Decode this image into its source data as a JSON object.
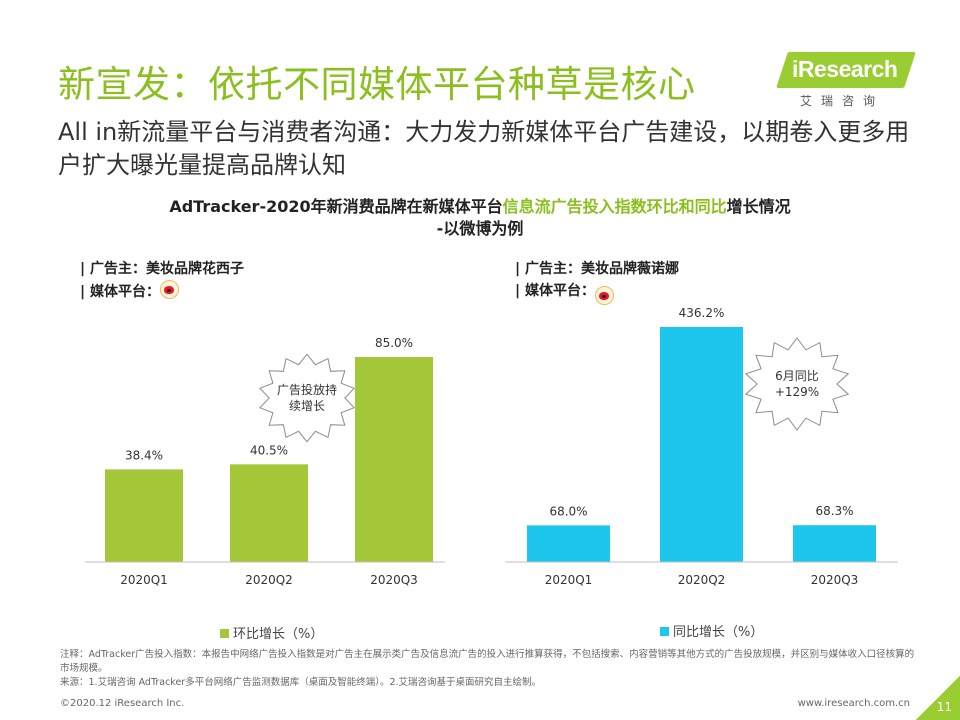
{
  "title": "新宣发：依托不同媒体平台种草是核心",
  "subtitle": "All  in新流量平台与消费者沟通：大力发力新媒体平台广告建设，以期卷入更多用户扩大曝光量提高品牌认知",
  "logo": {
    "text": "iResearch",
    "sub": "艾瑞咨询"
  },
  "chart_title": {
    "part1": "AdTracker-2020年新消费品牌在新媒体平台",
    "highlight": "信息流广告投入指数环比和同比",
    "part2": "增长情况",
    "line2": "-以微博为例"
  },
  "panels": {
    "left": {
      "advertiser": "| 广告主：美妆品牌花西子",
      "platform": "| 媒体平台：",
      "platform_icon": "weibo-icon"
    },
    "right": {
      "advertiser": "| 广告主：美妆品牌薇诺娜",
      "platform": "| 媒体平台：",
      "platform_icon": "weibo-icon"
    }
  },
  "chart_data": [
    {
      "type": "bar",
      "categories": [
        "2020Q1",
        "2020Q2",
        "2020Q3"
      ],
      "series": [
        {
          "name": "环比增长（%）",
          "values": [
            38.4,
            40.5,
            85.0
          ],
          "labels": [
            "38.4%",
            "40.5%",
            "85.0%"
          ]
        }
      ],
      "color": "#a4c639",
      "ylim": [
        0,
        100
      ],
      "annotation": "广告投放持续增长",
      "legend": "bottom"
    },
    {
      "type": "bar",
      "categories": [
        "2020Q1",
        "2020Q2",
        "2020Q3"
      ],
      "series": [
        {
          "name": "同比增长（%）",
          "values": [
            68.0,
            436.2,
            68.3
          ],
          "labels": [
            "68.0%",
            "436.2%",
            "68.3%"
          ]
        }
      ],
      "color": "#1ec6ee",
      "ylim": [
        0,
        480
      ],
      "annotation": "6月同比\n+129%",
      "legend": "bottom"
    }
  ],
  "notes": {
    "line1": "注释：AdTracker广告投入指数：本报告中网络广告投入指数是对广告主在展示类广告及信息流广告的投入进行推算获得，不包括搜索、内容营销等其他方式的广告投放规模，并区别与媒体收入口径核算的市场规模。",
    "line2": "来源：1.艾瑞咨询 AdTracker多平台网络广告监测数据库（桌面及智能终端）。2.艾瑞咨询基于桌面研究自主绘制。"
  },
  "footer": {
    "copyright": "©2020.12 iResearch Inc.",
    "url": "www.iresearch.com.cn",
    "page": "11"
  }
}
